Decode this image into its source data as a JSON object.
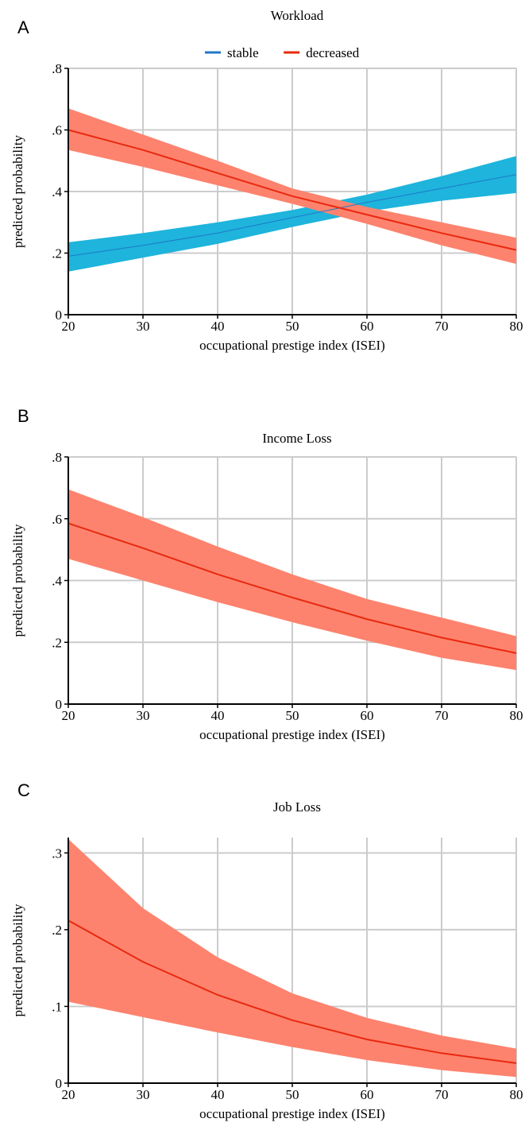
{
  "colors": {
    "stable_line": "#1f78c8",
    "stable_band": "#1eb4dc",
    "decreased_line": "#e8290f",
    "decreased_band": "#fd836e",
    "grid": "#cccccc",
    "axis": "#000000"
  },
  "chart_data": [
    {
      "panel_letter": "A",
      "type": "line",
      "title": "Workload",
      "xlabel": "occupational prestige index (ISEI)",
      "ylabel": "predicted probability",
      "xlim": [
        20,
        80
      ],
      "ylim": [
        0,
        0.8
      ],
      "x_ticks": [
        20,
        30,
        40,
        50,
        60,
        70,
        80
      ],
      "y_ticks": [
        0,
        0.2,
        0.4,
        0.6,
        0.8
      ],
      "y_tick_labels": [
        "0",
        ".2",
        ".4",
        ".6",
        ".8"
      ],
      "grid": true,
      "legend": "top-center",
      "x": [
        20,
        30,
        40,
        50,
        60,
        70,
        80
      ],
      "series": [
        {
          "name": "stable",
          "color": "stable_line",
          "band_color": "stable_band",
          "values": [
            0.19,
            0.225,
            0.265,
            0.315,
            0.365,
            0.41,
            0.455
          ],
          "lower": [
            0.14,
            0.185,
            0.23,
            0.285,
            0.335,
            0.37,
            0.395
          ],
          "upper": [
            0.235,
            0.265,
            0.3,
            0.34,
            0.39,
            0.45,
            0.515
          ]
        },
        {
          "name": "decreased",
          "color": "decreased_line",
          "band_color": "decreased_band",
          "values": [
            0.6,
            0.535,
            0.46,
            0.385,
            0.325,
            0.265,
            0.21
          ],
          "lower": [
            0.535,
            0.48,
            0.42,
            0.36,
            0.295,
            0.225,
            0.165
          ],
          "upper": [
            0.67,
            0.585,
            0.5,
            0.41,
            0.35,
            0.3,
            0.25
          ]
        }
      ]
    },
    {
      "panel_letter": "B",
      "type": "line",
      "title": "Income Loss",
      "xlabel": "occupational prestige index (ISEI)",
      "ylabel": "predicted probability",
      "xlim": [
        20,
        80
      ],
      "ylim": [
        0,
        0.8
      ],
      "x_ticks": [
        20,
        30,
        40,
        50,
        60,
        70,
        80
      ],
      "y_ticks": [
        0,
        0.2,
        0.4,
        0.6,
        0.8
      ],
      "y_tick_labels": [
        "0",
        ".2",
        ".4",
        ".6",
        ".8"
      ],
      "grid": true,
      "x": [
        20,
        30,
        40,
        50,
        60,
        70,
        80
      ],
      "series": [
        {
          "color": "decreased_line",
          "band_color": "decreased_band",
          "values": [
            0.585,
            0.505,
            0.42,
            0.345,
            0.275,
            0.215,
            0.165
          ],
          "lower": [
            0.47,
            0.4,
            0.33,
            0.265,
            0.205,
            0.15,
            0.11
          ],
          "upper": [
            0.695,
            0.605,
            0.51,
            0.42,
            0.34,
            0.28,
            0.22
          ]
        }
      ]
    },
    {
      "panel_letter": "C",
      "type": "line",
      "title": "Job Loss",
      "xlabel": "occupational prestige index (ISEI)",
      "ylabel": "predicted probability",
      "xlim": [
        20,
        80
      ],
      "ylim": [
        0,
        0.32
      ],
      "x_ticks": [
        20,
        30,
        40,
        50,
        60,
        70,
        80
      ],
      "y_ticks": [
        0,
        0.1,
        0.2,
        0.3
      ],
      "y_tick_labels": [
        "0",
        ".1",
        ".2",
        ".3"
      ],
      "grid": true,
      "x": [
        20,
        30,
        40,
        50,
        60,
        70,
        80
      ],
      "series": [
        {
          "color": "decreased_line",
          "band_color": "decreased_band",
          "values": [
            0.212,
            0.158,
            0.115,
            0.082,
            0.057,
            0.039,
            0.026
          ],
          "lower": [
            0.106,
            0.086,
            0.066,
            0.047,
            0.03,
            0.017,
            0.008
          ],
          "upper": [
            0.318,
            0.228,
            0.164,
            0.117,
            0.085,
            0.062,
            0.045
          ]
        }
      ]
    }
  ]
}
